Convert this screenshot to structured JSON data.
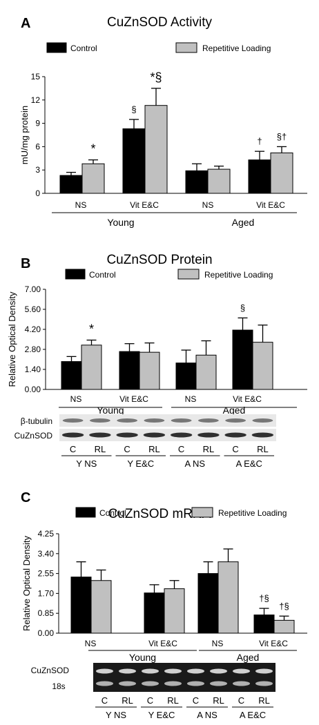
{
  "legend": {
    "control": "Control",
    "repetitive_loading": "Repetitive Loading"
  },
  "colors": {
    "control": "#000000",
    "repetitive_loading": "#c0c0c0",
    "gel_band": "#303030"
  },
  "chart_data": [
    {
      "type": "bar",
      "panel": "A",
      "title": "CuZnSOD Activity",
      "ylabel": "mU/mg protein",
      "ylim": [
        0,
        15
      ],
      "yticks": [
        "0",
        "3",
        "6",
        "9",
        "12",
        "15"
      ],
      "categories": [
        "NS",
        "Vit E&C",
        "NS",
        "Vit E&C"
      ],
      "groups": [
        "Young",
        "Aged"
      ],
      "series": [
        {
          "name": "Control",
          "values": [
            2.3,
            8.3,
            2.9,
            4.3
          ],
          "errors": [
            0.4,
            1.2,
            0.9,
            1.1
          ]
        },
        {
          "name": "Repetitive Loading",
          "values": [
            3.8,
            11.3,
            3.1,
            5.2
          ],
          "errors": [
            0.5,
            2.2,
            0.4,
            0.8
          ]
        }
      ],
      "annotations": [
        {
          "category": 0,
          "series": 1,
          "text": "*"
        },
        {
          "category": 1,
          "series": 0,
          "text": "§"
        },
        {
          "category": 1,
          "series": 1,
          "text": "*§"
        },
        {
          "category": 3,
          "series": 0,
          "text": "†"
        },
        {
          "category": 3,
          "series": 1,
          "text": "§†"
        }
      ]
    },
    {
      "type": "bar",
      "panel": "B",
      "title": "CuZnSOD Protein",
      "ylabel": "Relative Optical Density",
      "ylim": [
        0,
        7
      ],
      "yticks": [
        "0.00",
        "1.40",
        "2.80",
        "4.20",
        "5.60",
        "7.00"
      ],
      "categories": [
        "NS",
        "Vit E&C",
        "NS",
        "Vit E&C"
      ],
      "groups": [
        "Young",
        "Aged"
      ],
      "series": [
        {
          "name": "Control",
          "values": [
            1.95,
            2.65,
            1.85,
            4.15
          ],
          "errors": [
            0.35,
            0.55,
            0.9,
            0.85
          ]
        },
        {
          "name": "Repetitive Loading",
          "values": [
            3.1,
            2.6,
            2.4,
            3.3
          ],
          "errors": [
            0.35,
            0.65,
            1.0,
            1.2
          ]
        }
      ],
      "annotations": [
        {
          "category": 0,
          "series": 1,
          "text": "*"
        },
        {
          "category": 3,
          "series": 0,
          "text": "§"
        }
      ],
      "blot": {
        "rows": [
          "β-tubulin",
          "CuZnSOD"
        ],
        "lane_labels": [
          "C",
          "RL",
          "C",
          "RL",
          "C",
          "RL",
          "C",
          "RL"
        ],
        "group_labels": [
          "Y NS",
          "Y E&C",
          "A NS",
          "A E&C"
        ]
      }
    },
    {
      "type": "bar",
      "panel": "C",
      "title": "CuZnSOD mRNA",
      "ylabel": "Relative Optical Density",
      "ylim": [
        0,
        4.25
      ],
      "yticks": [
        "0.00",
        "0.85",
        "1.70",
        "2.55",
        "3.40",
        "4.25"
      ],
      "categories": [
        "NS",
        "Vit E&C",
        "NS",
        "Vit E&C"
      ],
      "groups": [
        "Young",
        "Aged"
      ],
      "series": [
        {
          "name": "Control",
          "values": [
            2.4,
            1.72,
            2.55,
            0.78
          ],
          "errors": [
            0.65,
            0.35,
            0.5,
            0.28
          ]
        },
        {
          "name": "Repetitive Loading",
          "values": [
            2.25,
            1.9,
            3.05,
            0.55
          ],
          "errors": [
            0.45,
            0.35,
            0.55,
            0.18
          ]
        }
      ],
      "annotations": [
        {
          "category": 3,
          "series": 0,
          "text": "†§"
        },
        {
          "category": 3,
          "series": 1,
          "text": "†§"
        }
      ],
      "blot": {
        "rows": [
          "CuZnSOD",
          "18s"
        ],
        "lane_labels": [
          "C",
          "RL",
          "C",
          "RL",
          "C",
          "RL",
          "C",
          "RL"
        ],
        "group_labels": [
          "Y NS",
          "Y E&C",
          "A NS",
          "A E&C"
        ]
      }
    }
  ]
}
